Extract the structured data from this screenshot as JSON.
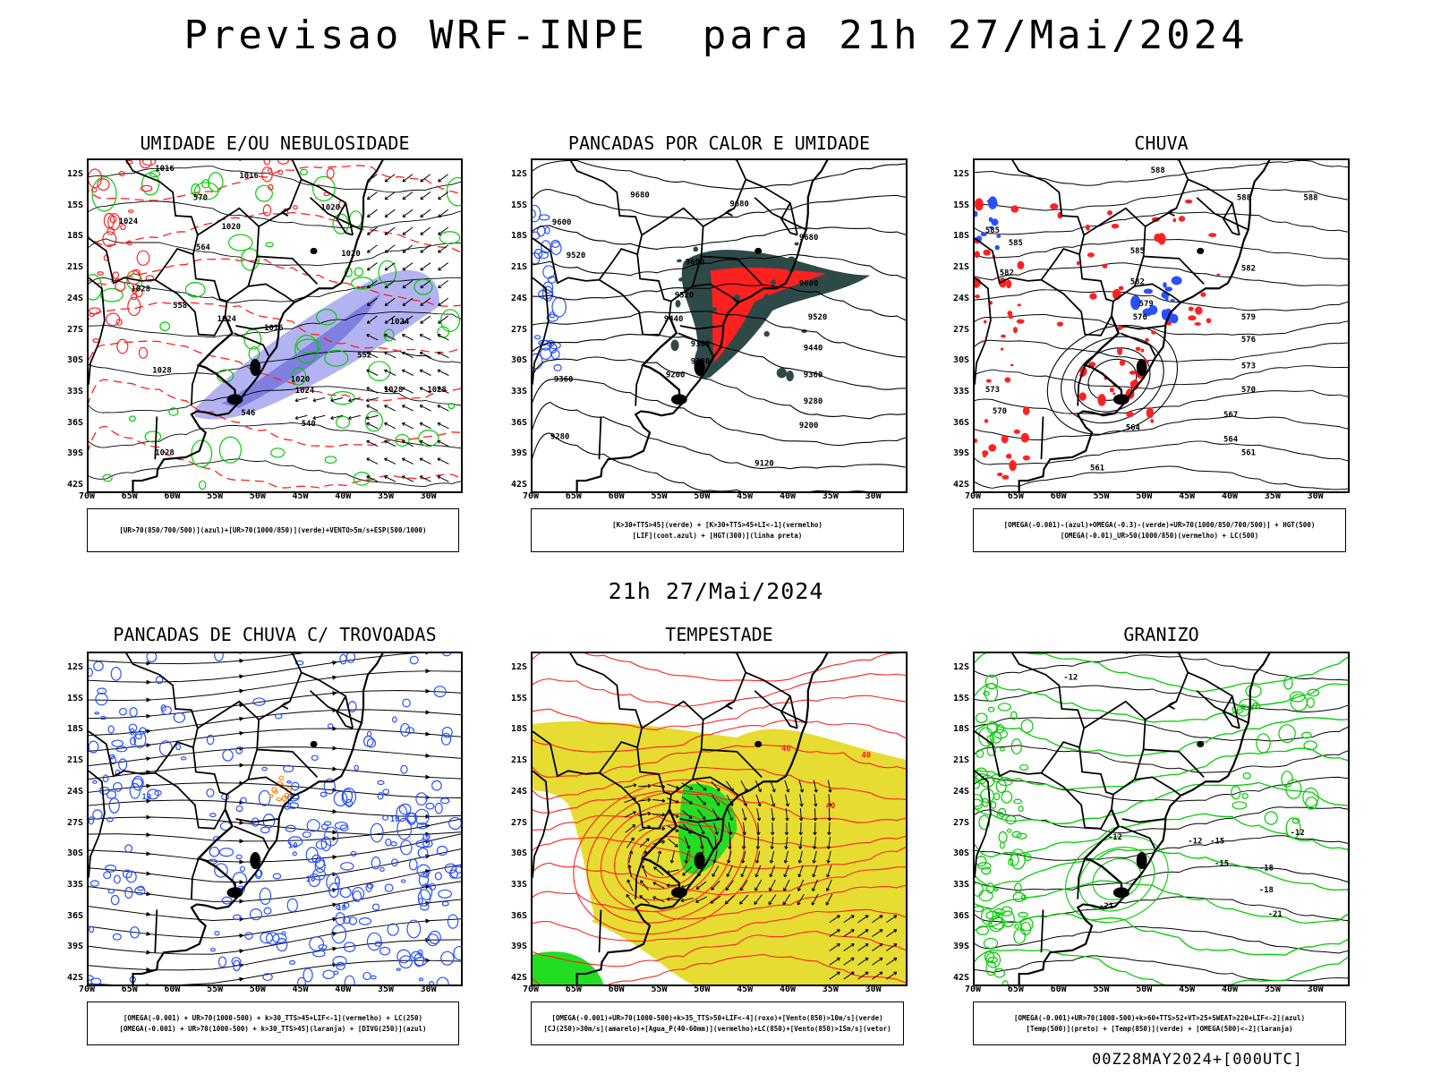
{
  "title": "Previsao WRF-INPE  para 21h 27/Mai/2024",
  "subtitle": "21h 27/Mai/2024",
  "footer": "00Z28MAY2024+[000UTC]",
  "axes": {
    "lat_labels": [
      "12S",
      "15S",
      "18S",
      "21S",
      "24S",
      "27S",
      "30S",
      "33S",
      "36S",
      "39S",
      "42S"
    ],
    "lon_labels": [
      "70W",
      "65W",
      "60W",
      "55W",
      "50W",
      "45W",
      "40W",
      "35W",
      "30W"
    ]
  },
  "panels": [
    {
      "title": "UMIDADE E/OU NEBULOSIDADE",
      "legend": [
        "[UR>70(850/700/500)](azul)+[UR>70(1000/850)](verde)+VENTO>5m/s+ESP(500/1000)"
      ],
      "contour_labels": [
        "1016",
        "1016",
        "1024",
        "1020",
        "1020",
        "1020",
        "1028",
        "1024",
        "1016",
        "1024",
        "1028",
        "1020",
        "1024",
        "1028",
        "1028",
        "1028",
        "570",
        "564",
        "558",
        "552",
        "546",
        "540"
      ]
    },
    {
      "title": "PANCADAS POR CALOR E UMIDADE",
      "legend": [
        "[K>30+TTS>45](verde) + [K>30+TTS>45+LI<-1](vermelho)",
        "[LIF](cont.azul) + [HGT(300)](linha preta)"
      ],
      "contour_labels": [
        "9680",
        "9680",
        "9680",
        "9600",
        "9600",
        "9600",
        "9520",
        "9520",
        "9520",
        "9440",
        "9440",
        "9360",
        "9360",
        "9360",
        "9280",
        "9280",
        "9280",
        "9200",
        "9200",
        "9120"
      ]
    },
    {
      "title": "CHUVA",
      "legend": [
        "[OMEGA(-0.001)-(azul)+OMEGA(-0.3)-(verde)+UR>70(1000/850/700/500)] + HGT(500)",
        "[OMEGA(-0.01)_UR>50(1000/850)(vermelho) + LC(500)"
      ],
      "contour_labels": [
        "588",
        "588",
        "588",
        "585",
        "585",
        "585",
        "582",
        "582",
        "582",
        "579",
        "579",
        "576",
        "576",
        "573",
        "573",
        "570",
        "570",
        "567",
        "564",
        "564",
        "561",
        "561"
      ]
    },
    {
      "title": "PANCADAS DE CHUVA C/ TROVOADAS",
      "legend": [
        "[OMEGA(-0.001) + UR>70(1000-500) + k>30_TTS>45+LIF<-1](vermelho) + LC(250)",
        "[OMEGA(-0.001) + UR>70(1000-500) + k>30_TTS>45](laranja) + [DIVG(250)](azul)"
      ],
      "contour_labels": [
        "10",
        "10",
        "10",
        "10",
        "10",
        "10"
      ]
    },
    {
      "title": "TEMPESTADE",
      "legend": [
        "[OMEGA(-0.001)+UR>70(1000-500)+k>35_TTS>50+LIF<-4](roxo)+[Vento(850)>10m/s](verde)",
        "[CJ(250)>30m/s](amarelo)+[Agua_P(40-60mm)](vermelho)+LC(850)+[Vento(850)>15m/s](vetor)"
      ],
      "contour_labels": [
        "40",
        "40",
        "40"
      ]
    },
    {
      "title": "GRANIZO",
      "legend": [
        "[OMEGA(-0.001)+UR>70(1000-500)+k>60+TTS>52+VT>25+SWEAT>220+LIF<-2](azul)",
        "[Temp(500)](preto) + [Temp(850)](verde) + [OMEGA(500)<-2](laranja)"
      ],
      "contour_labels": [
        "-12",
        "-12",
        "-15",
        "-18",
        "-21",
        "-21",
        "-12",
        "-12",
        "-18",
        "-15"
      ]
    }
  ],
  "colors": {
    "coast": "#000000",
    "green": "#00cc00",
    "red": "#ff2020",
    "blue": "#2850ff",
    "lavender": "#9a9aee",
    "dark_teal": "#2e4a48",
    "yellow": "#e6dc32",
    "orange": "#ff8800",
    "lgreen": "#22dd22"
  }
}
